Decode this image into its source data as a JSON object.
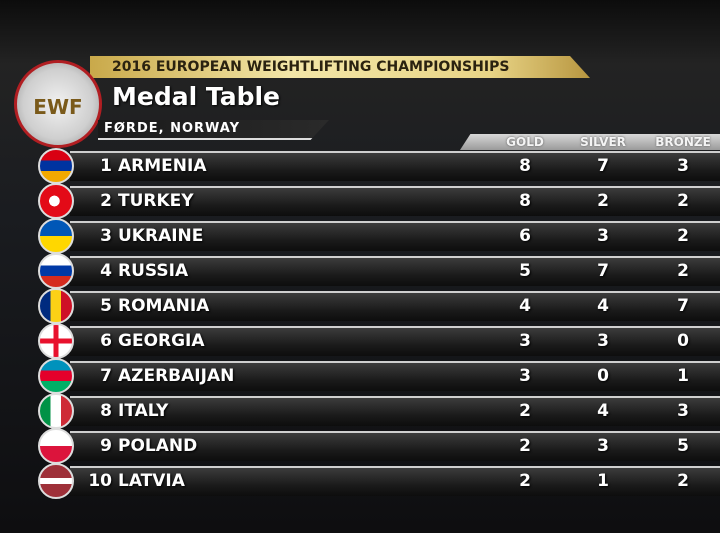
{
  "header": {
    "banner": "2016 EUROPEAN WEIGHTLIFTING CHAMPIONSHIPS",
    "logo": "EWF",
    "title": "Medal Table",
    "subtitle": "FØRDE, NORWAY"
  },
  "table": {
    "columns": [
      "GOLD",
      "SILVER",
      "BRONZE"
    ],
    "rows": [
      [
        1,
        "ARMENIA",
        8,
        7,
        3
      ],
      [
        2,
        "TURKEY",
        8,
        2,
        2
      ],
      [
        3,
        "UKRAINE",
        6,
        3,
        2
      ],
      [
        4,
        "RUSSIA",
        5,
        7,
        2
      ],
      [
        5,
        "ROMANIA",
        4,
        4,
        7
      ],
      [
        6,
        "GEORGIA",
        3,
        3,
        0
      ],
      [
        7,
        "AZERBAIJAN",
        3,
        0,
        1
      ],
      [
        8,
        "ITALY",
        2,
        4,
        3
      ],
      [
        9,
        "POLAND",
        2,
        3,
        5
      ],
      [
        10,
        "LATVIA",
        2,
        1,
        2
      ]
    ]
  }
}
